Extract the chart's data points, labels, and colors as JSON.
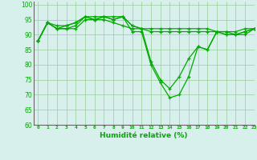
{
  "xlabel": "Humidité relative (%)",
  "xlim": [
    -0.5,
    23
  ],
  "ylim": [
    60,
    101
  ],
  "yticks": [
    60,
    65,
    70,
    75,
    80,
    85,
    90,
    95,
    100
  ],
  "xticks": [
    0,
    1,
    2,
    3,
    4,
    5,
    6,
    7,
    8,
    9,
    10,
    11,
    12,
    13,
    14,
    15,
    16,
    17,
    18,
    19,
    20,
    21,
    22,
    23
  ],
  "background_color": "#d8f0ec",
  "grid_color": "#99cc99",
  "line_color": "#00aa00",
  "lines": [
    [
      88,
      94,
      92,
      93,
      94,
      96,
      95,
      96,
      95,
      96,
      91,
      91,
      80,
      74,
      69,
      70,
      76,
      86,
      85,
      91,
      90,
      90,
      90,
      92
    ],
    [
      88,
      94,
      93,
      93,
      94,
      96,
      96,
      96,
      96,
      96,
      93,
      92,
      92,
      92,
      92,
      92,
      92,
      92,
      92,
      91,
      91,
      91,
      92,
      92
    ],
    [
      88,
      94,
      92,
      92,
      92,
      95,
      95,
      95,
      94,
      93,
      92,
      92,
      81,
      75,
      72,
      76,
      82,
      86,
      85,
      91,
      90,
      90,
      91,
      92
    ],
    [
      88,
      94,
      92,
      92,
      93,
      96,
      95,
      96,
      95,
      96,
      93,
      92,
      91,
      91,
      91,
      91,
      91,
      91,
      91,
      91,
      91,
      90,
      91,
      92
    ]
  ]
}
